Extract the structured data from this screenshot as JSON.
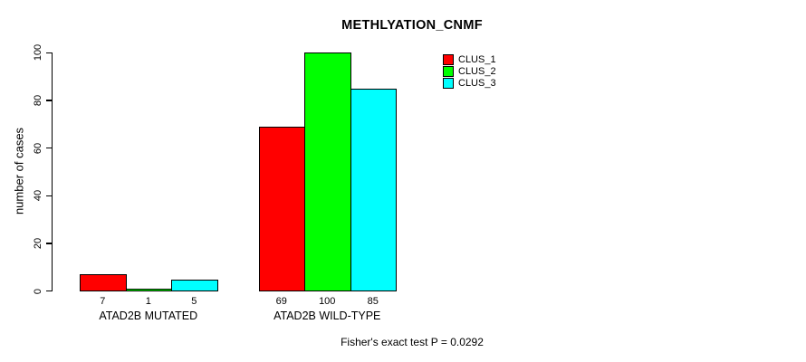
{
  "chart_data": {
    "type": "bar",
    "title": "METHLYATION_CNMF",
    "ylabel": "number of cases",
    "xlabel": "",
    "ylim": [
      0,
      100
    ],
    "yticks": [
      0,
      20,
      40,
      60,
      80,
      100
    ],
    "categories": [
      "ATAD2B MUTATED",
      "ATAD2B WILD-TYPE"
    ],
    "series": [
      {
        "name": "CLUS_1",
        "color": "#ff0000",
        "values": [
          7,
          69
        ]
      },
      {
        "name": "CLUS_2",
        "color": "#00ff00",
        "values": [
          1,
          100
        ]
      },
      {
        "name": "CLUS_3",
        "color": "#00ffff",
        "values": [
          5,
          85
        ]
      }
    ],
    "bar_value_labels": [
      [
        "7",
        "1",
        "5"
      ],
      [
        "69",
        "100",
        "85"
      ]
    ],
    "legend_position": "top-right",
    "grid": false,
    "footer": "Fisher's exact test P = 0.0292"
  }
}
